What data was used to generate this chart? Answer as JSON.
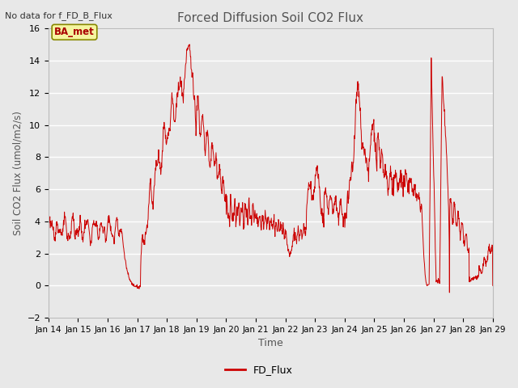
{
  "title": "Forced Diffusion Soil CO2 Flux",
  "top_left_text": "No data for f_FD_B_Flux",
  "ylabel": "Soil CO2 Flux (umol/m2/s)",
  "xlabel": "Time",
  "legend_label": "FD_Flux",
  "legend_color": "#cc0000",
  "line_color": "#cc0000",
  "background_color": "#e8e8e8",
  "ylim": [
    -2,
    16
  ],
  "yticks": [
    -2,
    0,
    2,
    4,
    6,
    8,
    10,
    12,
    14,
    16
  ],
  "xtick_labels": [
    "Jan 14",
    "Jan 15",
    "Jan 16",
    "Jan 17",
    "Jan 18",
    "Jan 19",
    "Jan 20",
    "Jan 21",
    "Jan 22",
    "Jan 23",
    "Jan 24",
    "Jan 25",
    "Jan 26",
    "Jan 27",
    "Jan 28",
    "Jan 29"
  ],
  "ba_met_label": "BA_met",
  "ba_met_bg": "#f5f5a0",
  "ba_met_border": "#888800",
  "figsize": [
    6.4,
    4.8
  ],
  "dpi": 100
}
